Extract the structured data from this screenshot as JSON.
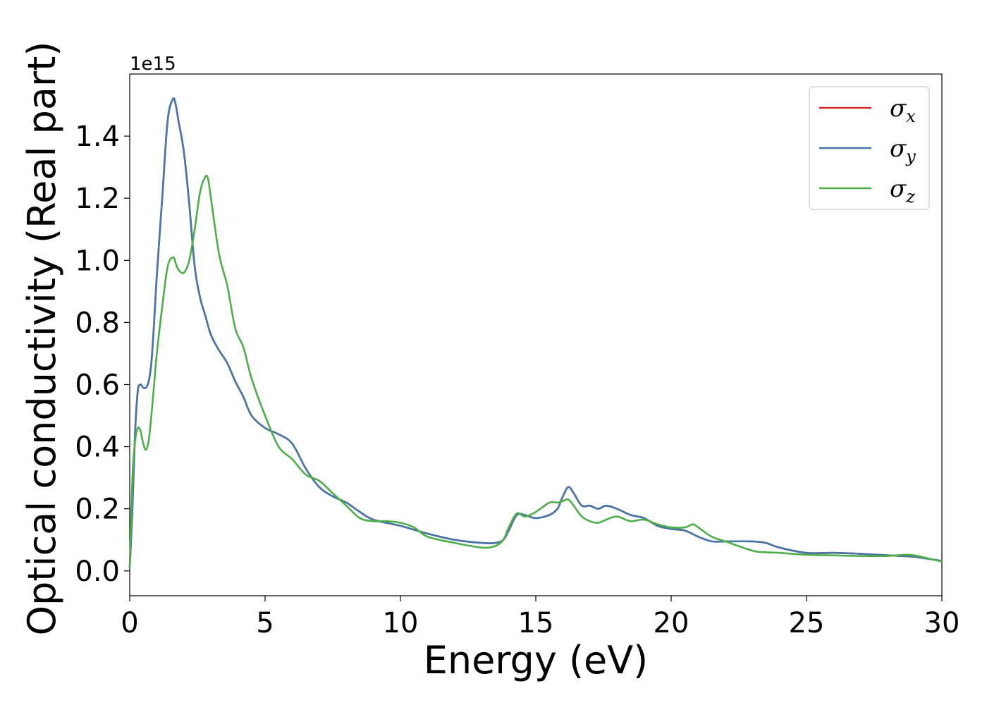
{
  "chart_data": {
    "type": "line",
    "xlabel": "Energy (eV)",
    "ylabel": "Optical conductivity (Real part)",
    "y_offset_label": "1e15",
    "xlim": [
      0,
      30
    ],
    "ylim": [
      -0.08,
      1.6
    ],
    "x_ticks": [
      0,
      5,
      10,
      15,
      20,
      25,
      30
    ],
    "x_tick_labels": [
      "0",
      "5",
      "10",
      "15",
      "20",
      "25",
      "30"
    ],
    "y_ticks": [
      0.0,
      0.2,
      0.4,
      0.6,
      0.8,
      1.0,
      1.2,
      1.4
    ],
    "y_tick_labels": [
      "0.0",
      "0.2",
      "0.4",
      "0.6",
      "0.8",
      "1.0",
      "1.2",
      "1.4"
    ],
    "grid": false,
    "legend_position": "top-right",
    "series": [
      {
        "name": "σx",
        "symbol": "σ",
        "subscript": "x",
        "color": "#d62728",
        "x": [
          0,
          0.1,
          0.2,
          0.3,
          0.4,
          0.5,
          0.6,
          0.7,
          0.8,
          0.9,
          1.0,
          1.2,
          1.4,
          1.6,
          1.7,
          1.8,
          2.0,
          2.2,
          2.4,
          2.6,
          2.8,
          3.0,
          3.3,
          3.6,
          3.9,
          4.2,
          4.5,
          5.0,
          5.5,
          6.0,
          6.5,
          7.0,
          7.5,
          8.0,
          8.5,
          9.0,
          10.0,
          11.0,
          12.0,
          13.0,
          13.5,
          13.8,
          14.0,
          14.3,
          14.6,
          15.0,
          15.5,
          15.8,
          16.0,
          16.2,
          16.4,
          16.7,
          17.0,
          17.3,
          17.6,
          18.0,
          18.5,
          19.0,
          19.5,
          20.0,
          20.5,
          21.0,
          21.5,
          22.0,
          23.0,
          23.5,
          24.0,
          25.0,
          26.0,
          27.0,
          28.0,
          29.0,
          30.0
        ],
        "values": [
          0.01,
          0.2,
          0.45,
          0.58,
          0.6,
          0.59,
          0.59,
          0.61,
          0.67,
          0.8,
          0.95,
          1.2,
          1.45,
          1.52,
          1.5,
          1.45,
          1.35,
          1.18,
          0.98,
          0.88,
          0.82,
          0.76,
          0.71,
          0.67,
          0.61,
          0.56,
          0.5,
          0.46,
          0.44,
          0.41,
          0.33,
          0.27,
          0.24,
          0.22,
          0.19,
          0.165,
          0.145,
          0.12,
          0.1,
          0.09,
          0.09,
          0.1,
          0.13,
          0.18,
          0.18,
          0.17,
          0.18,
          0.2,
          0.24,
          0.27,
          0.25,
          0.21,
          0.21,
          0.2,
          0.21,
          0.2,
          0.18,
          0.17,
          0.145,
          0.135,
          0.13,
          0.11,
          0.095,
          0.095,
          0.095,
          0.09,
          0.075,
          0.058,
          0.058,
          0.055,
          0.05,
          0.045,
          0.032
        ]
      },
      {
        "name": "σy",
        "symbol": "σ",
        "subscript": "y",
        "color": "#4477aa",
        "x": [
          0,
          0.1,
          0.2,
          0.3,
          0.4,
          0.5,
          0.6,
          0.7,
          0.8,
          0.9,
          1.0,
          1.2,
          1.4,
          1.6,
          1.7,
          1.8,
          2.0,
          2.2,
          2.4,
          2.6,
          2.8,
          3.0,
          3.3,
          3.6,
          3.9,
          4.2,
          4.5,
          5.0,
          5.5,
          6.0,
          6.5,
          7.0,
          7.5,
          8.0,
          8.5,
          9.0,
          10.0,
          11.0,
          12.0,
          13.0,
          13.5,
          13.8,
          14.0,
          14.3,
          14.6,
          15.0,
          15.5,
          15.8,
          16.0,
          16.2,
          16.4,
          16.7,
          17.0,
          17.3,
          17.6,
          18.0,
          18.5,
          19.0,
          19.5,
          20.0,
          20.5,
          21.0,
          21.5,
          22.0,
          23.0,
          23.5,
          24.0,
          25.0,
          26.0,
          27.0,
          28.0,
          29.0,
          30.0
        ],
        "values": [
          0.01,
          0.2,
          0.45,
          0.58,
          0.6,
          0.59,
          0.59,
          0.61,
          0.67,
          0.8,
          0.95,
          1.2,
          1.45,
          1.52,
          1.5,
          1.45,
          1.35,
          1.18,
          0.98,
          0.88,
          0.82,
          0.76,
          0.71,
          0.67,
          0.61,
          0.56,
          0.5,
          0.46,
          0.44,
          0.41,
          0.33,
          0.27,
          0.24,
          0.22,
          0.19,
          0.165,
          0.145,
          0.12,
          0.1,
          0.09,
          0.09,
          0.1,
          0.13,
          0.18,
          0.18,
          0.17,
          0.18,
          0.2,
          0.24,
          0.27,
          0.25,
          0.21,
          0.21,
          0.2,
          0.21,
          0.2,
          0.18,
          0.17,
          0.145,
          0.135,
          0.13,
          0.11,
          0.095,
          0.095,
          0.095,
          0.09,
          0.075,
          0.058,
          0.058,
          0.055,
          0.05,
          0.045,
          0.032
        ]
      },
      {
        "name": "σz",
        "symbol": "σ",
        "subscript": "z",
        "color": "#4daf4a",
        "x": [
          0,
          0.1,
          0.2,
          0.3,
          0.4,
          0.5,
          0.6,
          0.7,
          0.8,
          0.9,
          1.0,
          1.2,
          1.4,
          1.6,
          1.7,
          1.8,
          2.0,
          2.2,
          2.4,
          2.6,
          2.8,
          2.9,
          3.0,
          3.3,
          3.6,
          3.9,
          4.2,
          4.5,
          5.0,
          5.5,
          6.0,
          6.5,
          7.0,
          7.5,
          8.0,
          8.5,
          9.0,
          9.5,
          10.0,
          10.5,
          11.0,
          12.0,
          13.0,
          13.5,
          13.8,
          14.0,
          14.3,
          14.6,
          15.0,
          15.5,
          15.8,
          16.0,
          16.2,
          16.4,
          16.7,
          17.0,
          17.3,
          17.6,
          18.0,
          18.5,
          19.0,
          19.5,
          20.0,
          20.5,
          20.8,
          21.0,
          21.5,
          22.0,
          23.0,
          23.5,
          24.0,
          25.0,
          26.0,
          27.0,
          28.0,
          28.8,
          29.5,
          30.0
        ],
        "values": [
          0.01,
          0.3,
          0.42,
          0.46,
          0.45,
          0.41,
          0.39,
          0.42,
          0.5,
          0.6,
          0.7,
          0.85,
          0.98,
          1.01,
          0.99,
          0.97,
          0.96,
          1.0,
          1.1,
          1.22,
          1.27,
          1.26,
          1.2,
          1.02,
          0.92,
          0.78,
          0.72,
          0.62,
          0.5,
          0.4,
          0.36,
          0.31,
          0.29,
          0.25,
          0.21,
          0.17,
          0.16,
          0.16,
          0.155,
          0.14,
          0.11,
          0.09,
          0.075,
          0.08,
          0.1,
          0.14,
          0.185,
          0.175,
          0.19,
          0.22,
          0.22,
          0.225,
          0.23,
          0.21,
          0.175,
          0.16,
          0.155,
          0.165,
          0.175,
          0.16,
          0.165,
          0.15,
          0.14,
          0.14,
          0.15,
          0.14,
          0.11,
          0.095,
          0.065,
          0.06,
          0.058,
          0.052,
          0.05,
          0.048,
          0.048,
          0.052,
          0.04,
          0.03
        ]
      }
    ]
  }
}
